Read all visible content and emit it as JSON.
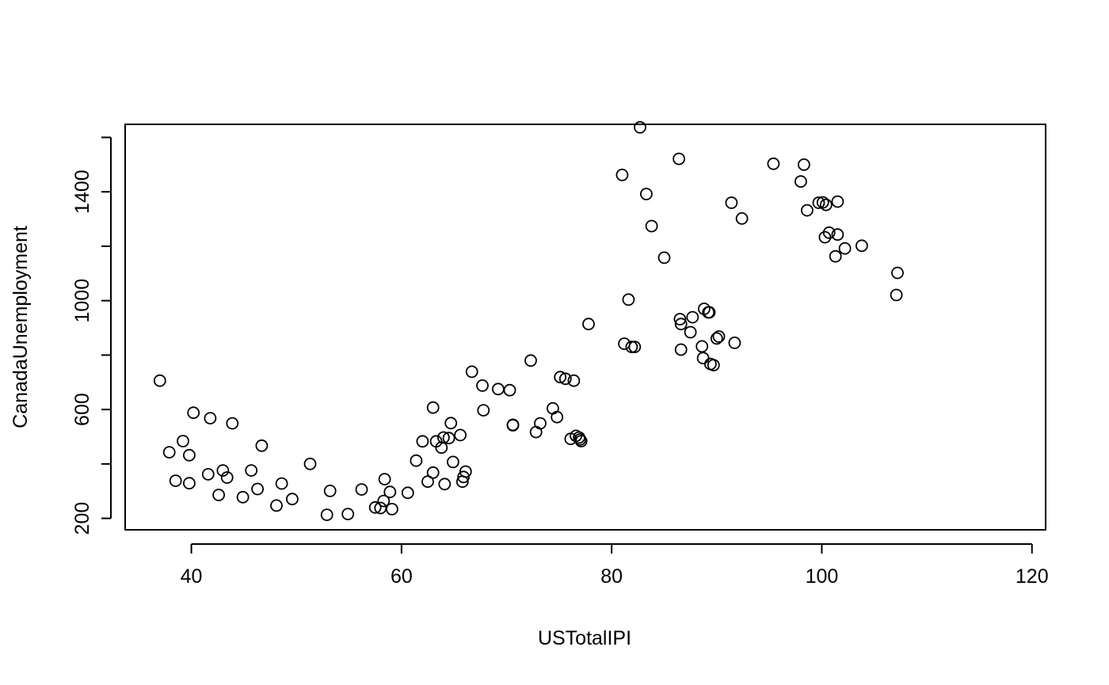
{
  "chart_data": {
    "type": "scatter",
    "title": "",
    "xlabel": "USTotalIPI",
    "ylabel": "CanadaUnemployment",
    "xlim": [
      33.7,
      121.3
    ],
    "ylim": [
      158,
      1648
    ],
    "x_ticks": [
      40,
      60,
      80,
      100,
      120
    ],
    "x_tick_labels": [
      "40",
      "60",
      "80",
      "100",
      "120"
    ],
    "y_ticks": [
      200,
      400,
      600,
      800,
      1000,
      1200,
      1400,
      1600
    ],
    "y_tick_labels": [
      "200",
      "",
      "600",
      "",
      "1000",
      "",
      "1400",
      ""
    ],
    "grid": false,
    "legend": "none",
    "marker": "open-circle",
    "points": [
      {
        "x": 37.0,
        "y": 706
      },
      {
        "x": 37.9,
        "y": 443
      },
      {
        "x": 38.5,
        "y": 338
      },
      {
        "x": 39.2,
        "y": 484
      },
      {
        "x": 39.8,
        "y": 329
      },
      {
        "x": 39.8,
        "y": 432
      },
      {
        "x": 40.2,
        "y": 588
      },
      {
        "x": 41.6,
        "y": 362
      },
      {
        "x": 41.8,
        "y": 568
      },
      {
        "x": 42.6,
        "y": 286
      },
      {
        "x": 43.0,
        "y": 376
      },
      {
        "x": 43.4,
        "y": 350
      },
      {
        "x": 43.9,
        "y": 549
      },
      {
        "x": 44.9,
        "y": 278
      },
      {
        "x": 45.7,
        "y": 376
      },
      {
        "x": 46.3,
        "y": 308
      },
      {
        "x": 46.7,
        "y": 467
      },
      {
        "x": 48.1,
        "y": 247
      },
      {
        "x": 48.6,
        "y": 328
      },
      {
        "x": 49.6,
        "y": 271
      },
      {
        "x": 51.3,
        "y": 400
      },
      {
        "x": 52.9,
        "y": 213
      },
      {
        "x": 53.2,
        "y": 301
      },
      {
        "x": 54.9,
        "y": 216
      },
      {
        "x": 56.2,
        "y": 306
      },
      {
        "x": 57.5,
        "y": 240
      },
      {
        "x": 58.0,
        "y": 238
      },
      {
        "x": 58.3,
        "y": 264
      },
      {
        "x": 58.4,
        "y": 344
      },
      {
        "x": 58.9,
        "y": 297
      },
      {
        "x": 59.1,
        "y": 234
      },
      {
        "x": 60.6,
        "y": 294
      },
      {
        "x": 61.4,
        "y": 412
      },
      {
        "x": 62.0,
        "y": 483
      },
      {
        "x": 62.5,
        "y": 335
      },
      {
        "x": 63.0,
        "y": 607
      },
      {
        "x": 63.0,
        "y": 368
      },
      {
        "x": 63.3,
        "y": 483
      },
      {
        "x": 63.8,
        "y": 460
      },
      {
        "x": 64.0,
        "y": 497
      },
      {
        "x": 64.1,
        "y": 326
      },
      {
        "x": 64.5,
        "y": 495
      },
      {
        "x": 64.7,
        "y": 550
      },
      {
        "x": 64.9,
        "y": 407
      },
      {
        "x": 65.6,
        "y": 506
      },
      {
        "x": 65.8,
        "y": 335
      },
      {
        "x": 65.9,
        "y": 352
      },
      {
        "x": 66.1,
        "y": 372
      },
      {
        "x": 66.7,
        "y": 739
      },
      {
        "x": 67.7,
        "y": 688
      },
      {
        "x": 67.8,
        "y": 597
      },
      {
        "x": 69.2,
        "y": 675
      },
      {
        "x": 70.3,
        "y": 671
      },
      {
        "x": 70.6,
        "y": 544
      },
      {
        "x": 70.6,
        "y": 542
      },
      {
        "x": 72.3,
        "y": 780
      },
      {
        "x": 72.8,
        "y": 517
      },
      {
        "x": 73.2,
        "y": 549
      },
      {
        "x": 74.4,
        "y": 604
      },
      {
        "x": 74.8,
        "y": 572
      },
      {
        "x": 75.1,
        "y": 719
      },
      {
        "x": 75.6,
        "y": 713
      },
      {
        "x": 76.1,
        "y": 492
      },
      {
        "x": 76.4,
        "y": 706
      },
      {
        "x": 76.6,
        "y": 503
      },
      {
        "x": 76.9,
        "y": 497
      },
      {
        "x": 77.0,
        "y": 490
      },
      {
        "x": 77.1,
        "y": 484
      },
      {
        "x": 77.8,
        "y": 914
      },
      {
        "x": 81.0,
        "y": 1462
      },
      {
        "x": 81.2,
        "y": 842
      },
      {
        "x": 81.6,
        "y": 1004
      },
      {
        "x": 81.9,
        "y": 830
      },
      {
        "x": 82.2,
        "y": 830
      },
      {
        "x": 82.7,
        "y": 1637
      },
      {
        "x": 83.3,
        "y": 1392
      },
      {
        "x": 83.8,
        "y": 1274
      },
      {
        "x": 85.0,
        "y": 1158
      },
      {
        "x": 86.4,
        "y": 1521
      },
      {
        "x": 86.5,
        "y": 932
      },
      {
        "x": 86.6,
        "y": 914
      },
      {
        "x": 86.6,
        "y": 820
      },
      {
        "x": 87.5,
        "y": 884
      },
      {
        "x": 87.7,
        "y": 939
      },
      {
        "x": 88.6,
        "y": 832
      },
      {
        "x": 88.7,
        "y": 789
      },
      {
        "x": 88.8,
        "y": 970
      },
      {
        "x": 89.2,
        "y": 957
      },
      {
        "x": 89.3,
        "y": 957
      },
      {
        "x": 89.4,
        "y": 767
      },
      {
        "x": 89.7,
        "y": 763
      },
      {
        "x": 90.0,
        "y": 861
      },
      {
        "x": 90.2,
        "y": 868
      },
      {
        "x": 91.4,
        "y": 1360
      },
      {
        "x": 91.7,
        "y": 845
      },
      {
        "x": 92.4,
        "y": 1302
      },
      {
        "x": 95.4,
        "y": 1503
      },
      {
        "x": 98.0,
        "y": 1438
      },
      {
        "x": 98.3,
        "y": 1500
      },
      {
        "x": 98.6,
        "y": 1332
      },
      {
        "x": 99.7,
        "y": 1360
      },
      {
        "x": 100.1,
        "y": 1361
      },
      {
        "x": 100.3,
        "y": 1233
      },
      {
        "x": 100.4,
        "y": 1352
      },
      {
        "x": 100.7,
        "y": 1250
      },
      {
        "x": 101.3,
        "y": 1163
      },
      {
        "x": 101.5,
        "y": 1364
      },
      {
        "x": 101.5,
        "y": 1243
      },
      {
        "x": 102.2,
        "y": 1192
      },
      {
        "x": 103.8,
        "y": 1202
      },
      {
        "x": 107.1,
        "y": 1021
      },
      {
        "x": 107.2,
        "y": 1102
      }
    ]
  }
}
